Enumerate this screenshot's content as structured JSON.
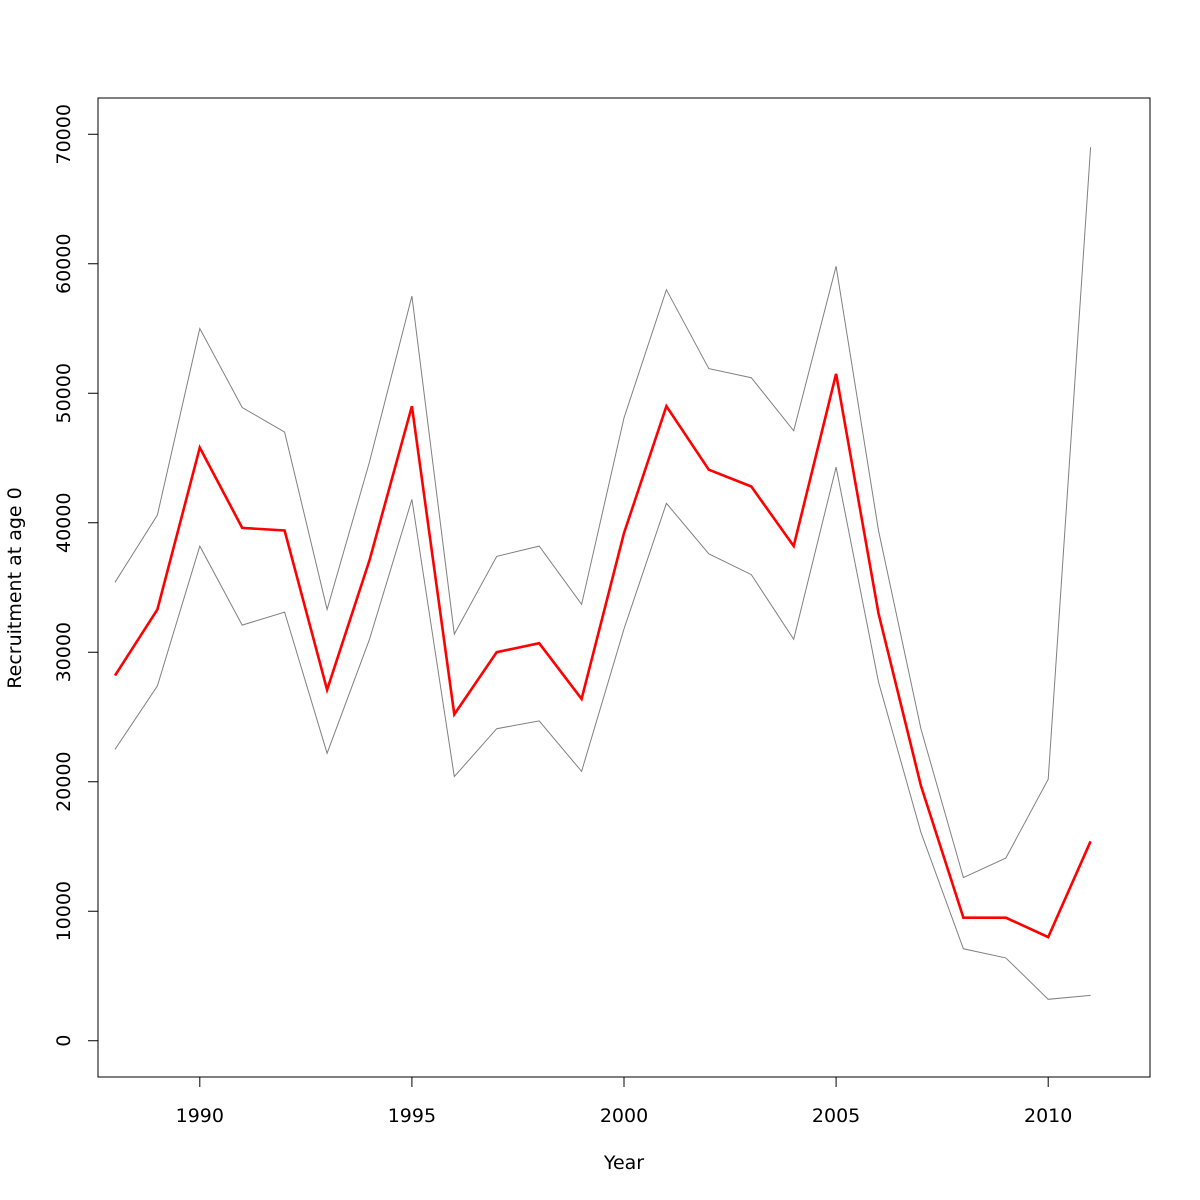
{
  "chart_data": {
    "type": "line",
    "xlabel": "Year",
    "ylabel": "Recruitment at age 0",
    "x": [
      1988,
      1989,
      1990,
      1991,
      1992,
      1993,
      1994,
      1995,
      1996,
      1997,
      1998,
      1999,
      2000,
      2001,
      2002,
      2003,
      2004,
      2005,
      2006,
      2007,
      2008,
      2009,
      2010,
      2011
    ],
    "series": [
      {
        "color": "#ff0000",
        "values": [
          28200,
          33300,
          45800,
          39600,
          39400,
          27100,
          37100,
          49000,
          25200,
          30000,
          30700,
          26400,
          39200,
          49000,
          44100,
          42800,
          38200,
          51500,
          33000,
          19700,
          9500,
          9500,
          8000,
          15400
        ]
      },
      {
        "color": "#808080",
        "values": [
          35400,
          40600,
          55000,
          48900,
          47000,
          33300,
          44700,
          57500,
          31400,
          37400,
          38200,
          33700,
          48100,
          58000,
          51900,
          51200,
          47100,
          59800,
          39400,
          24100,
          12600,
          14100,
          20200,
          69000
        ]
      },
      {
        "color": "#808080",
        "values": [
          22500,
          27400,
          38200,
          32100,
          33100,
          22200,
          31000,
          41800,
          20400,
          24100,
          24700,
          20800,
          31800,
          41500,
          37600,
          36000,
          31000,
          44300,
          27700,
          16100,
          7100,
          6400,
          3200,
          3500
        ]
      }
    ],
    "xlim": [
      1987.6,
      2012.4
    ],
    "ylim": [
      -2800,
      72800
    ],
    "xticks": [
      "1990",
      "1995",
      "2000",
      "2005",
      "2010"
    ],
    "yticks": [
      "0",
      "10000",
      "20000",
      "30000",
      "40000",
      "50000",
      "60000",
      "70000"
    ],
    "grid": false
  }
}
